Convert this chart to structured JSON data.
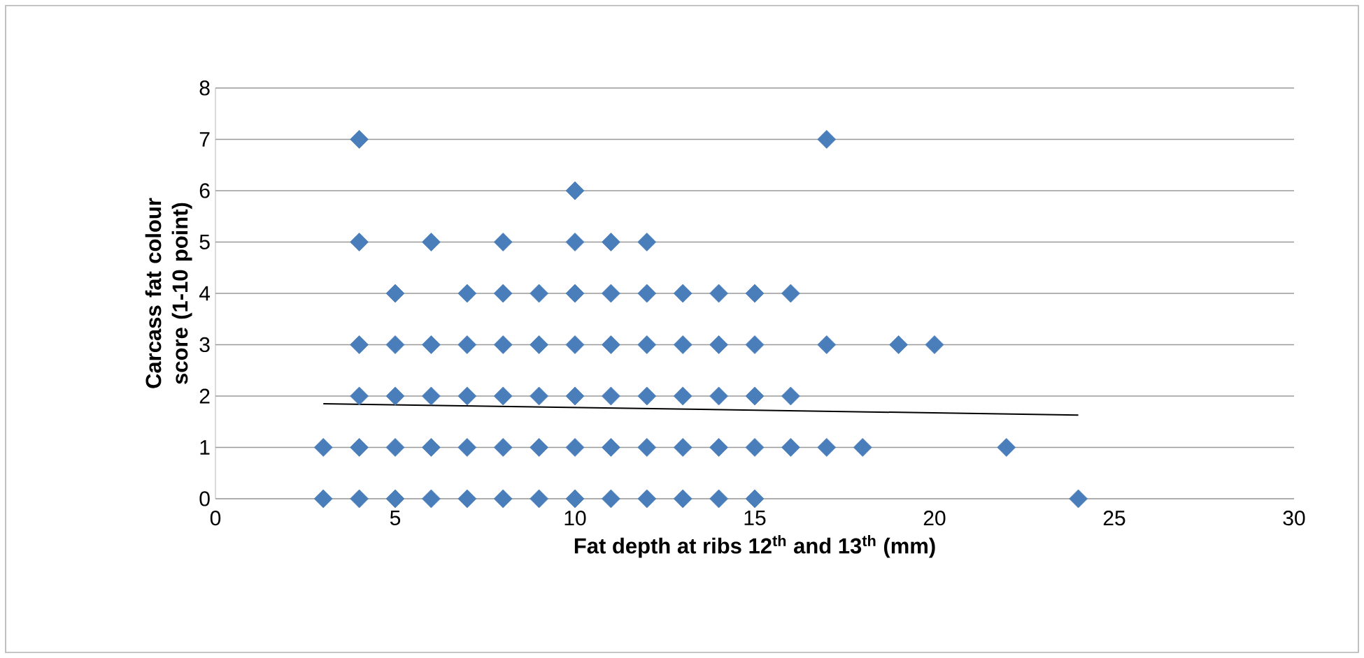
{
  "chart_data": {
    "type": "scatter",
    "xlabel": "Fat depth at ribs 12$^{th}$ and 13$^{th}$ (mm)",
    "ylabel": "Carcass fat colour score (1-10 point)",
    "xlim": [
      0,
      30
    ],
    "ylim": [
      0,
      8
    ],
    "xticks": [
      0,
      5,
      10,
      15,
      20,
      25,
      30
    ],
    "yticks": [
      0,
      1,
      2,
      3,
      4,
      5,
      6,
      7,
      8
    ],
    "grid": "y",
    "series": [
      {
        "color": "#4a7ebb",
        "marker": "diamond",
        "x": [
          3,
          4,
          5,
          6,
          7,
          8,
          9,
          10,
          11,
          12,
          13,
          14,
          15,
          24,
          3,
          4,
          5,
          6,
          7,
          8,
          9,
          10,
          11,
          12,
          13,
          14,
          15,
          16,
          17,
          18,
          22,
          4,
          5,
          6,
          7,
          8,
          9,
          10,
          11,
          12,
          13,
          14,
          15,
          16,
          4,
          5,
          6,
          7,
          8,
          9,
          10,
          11,
          12,
          13,
          14,
          15,
          17,
          19,
          20,
          5,
          7,
          8,
          9,
          10,
          11,
          12,
          13,
          14,
          15,
          16,
          4,
          6,
          8,
          10,
          11,
          12,
          10,
          4,
          17
        ],
        "values": [
          0,
          0,
          0,
          0,
          0,
          0,
          0,
          0,
          0,
          0,
          0,
          0,
          0,
          0,
          1,
          1,
          1,
          1,
          1,
          1,
          1,
          1,
          1,
          1,
          1,
          1,
          1,
          1,
          1,
          1,
          1,
          2,
          2,
          2,
          2,
          2,
          2,
          2,
          2,
          2,
          2,
          2,
          2,
          2,
          3,
          3,
          3,
          3,
          3,
          3,
          3,
          3,
          3,
          3,
          3,
          3,
          3,
          3,
          3,
          4,
          4,
          4,
          4,
          4,
          4,
          4,
          4,
          4,
          4,
          4,
          5,
          5,
          5,
          5,
          5,
          5,
          6,
          7,
          7
        ]
      },
      {
        "type": "line",
        "color": "#000000",
        "marker": "none",
        "x": [
          3,
          24
        ],
        "values": [
          1.85,
          1.63
        ]
      }
    ]
  }
}
